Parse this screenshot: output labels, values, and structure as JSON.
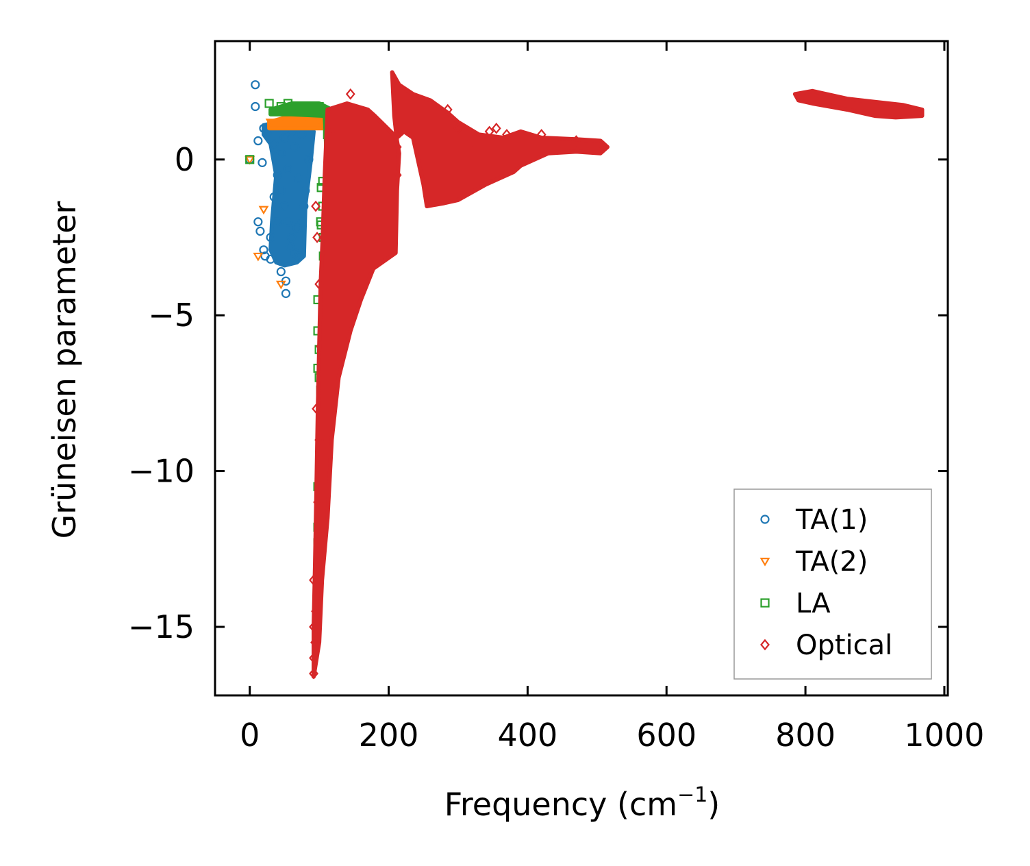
{
  "chart_data": {
    "type": "scatter",
    "title": "",
    "xlabel": "Frequency (cm",
    "xlabel_sup": "−1",
    "xlabel_close": ")",
    "ylabel": "Grüneisen parameter",
    "xlim": [
      -50,
      1005
    ],
    "ylim": [
      -17.2,
      3.8
    ],
    "xticks": [
      0,
      200,
      400,
      600,
      800,
      1000
    ],
    "xtick_labels": [
      "0",
      "200",
      "400",
      "600",
      "800",
      "1000"
    ],
    "yticks": [
      0,
      -5,
      -10,
      -15
    ],
    "ytick_labels": [
      "0",
      "−5",
      "−10",
      "−15"
    ],
    "grid": false,
    "legend_position": "bottom-right",
    "series": [
      {
        "name": "TA(1)",
        "marker": "circle",
        "color": "#1f77b4",
        "points": [
          [
            8,
            2.4
          ],
          [
            8,
            1.7
          ],
          [
            12,
            0.6
          ],
          [
            0,
            0
          ],
          [
            18,
            -0.1
          ],
          [
            12,
            -2
          ],
          [
            15,
            -2.3
          ],
          [
            20,
            -2.9
          ],
          [
            22,
            -3.1
          ],
          [
            30,
            -3.2
          ],
          [
            45,
            -3.6
          ],
          [
            52,
            -3.9
          ],
          [
            52,
            -4.3
          ],
          [
            20,
            1.0
          ],
          [
            25,
            0.9
          ],
          [
            35,
            0.5
          ],
          [
            40,
            -0.5
          ],
          [
            45,
            -1
          ],
          [
            50,
            -1.5
          ],
          [
            55,
            -2
          ],
          [
            60,
            -2.5
          ],
          [
            65,
            -3
          ],
          [
            70,
            -3.1
          ],
          [
            75,
            -2
          ],
          [
            80,
            -1
          ],
          [
            85,
            0
          ],
          [
            75,
            0.8
          ],
          [
            60,
            0.9
          ],
          [
            50,
            0.7
          ],
          [
            40,
            -2
          ],
          [
            30,
            -2.5
          ],
          [
            35,
            -1.2
          ],
          [
            45,
            0.2
          ],
          [
            55,
            -0.3
          ],
          [
            65,
            0.4
          ],
          [
            70,
            -0.6
          ],
          [
            78,
            -1.5
          ],
          [
            68,
            -2.2
          ],
          [
            58,
            -2.8
          ]
        ],
        "regions": [
          [
            [
              20,
              1.1
            ],
            [
              40,
              1.2
            ],
            [
              60,
              1.1
            ],
            [
              85,
              1.2
            ],
            [
              92,
              0.9
            ],
            [
              88,
              0
            ],
            [
              80,
              -1.5
            ],
            [
              78,
              -3.1
            ],
            [
              68,
              -3.3
            ],
            [
              50,
              -3.4
            ],
            [
              38,
              -3.3
            ],
            [
              30,
              -2.9
            ],
            [
              32,
              -2
            ],
            [
              38,
              -0.5
            ],
            [
              30,
              0.5
            ],
            [
              20,
              0.8
            ]
          ]
        ]
      },
      {
        "name": "TA(2)",
        "marker": "triangle-down",
        "color": "#ff7f0e",
        "points": [
          [
            0,
            0
          ],
          [
            20,
            -1.6
          ],
          [
            12,
            -3.1
          ],
          [
            45,
            -4.0
          ],
          [
            30,
            1.2
          ],
          [
            50,
            1.4
          ],
          [
            80,
            1.4
          ],
          [
            100,
            1.3
          ]
        ],
        "regions": [
          [
            [
              28,
              1.2
            ],
            [
              60,
              1.4
            ],
            [
              105,
              1.4
            ],
            [
              110,
              1.0
            ],
            [
              90,
              1.0
            ],
            [
              50,
              1.0
            ],
            [
              28,
              1.0
            ]
          ]
        ]
      },
      {
        "name": "LA",
        "marker": "square",
        "color": "#2ca02c",
        "points": [
          [
            0,
            0
          ],
          [
            28,
            1.8
          ],
          [
            45,
            1.7
          ],
          [
            55,
            1.8
          ],
          [
            70,
            1.7
          ],
          [
            85,
            1.7
          ],
          [
            100,
            1.7
          ],
          [
            118,
            1.5
          ],
          [
            118,
            1.1
          ],
          [
            112,
            0.8
          ],
          [
            105,
            -0.7
          ],
          [
            103,
            -0.9
          ],
          [
            105,
            -1.5
          ],
          [
            102,
            -2.0
          ],
          [
            103,
            -2.1
          ],
          [
            106,
            -2.5
          ],
          [
            106,
            -3.1
          ],
          [
            98,
            -4.5
          ],
          [
            98,
            -5.5
          ],
          [
            100,
            -6.1
          ],
          [
            98,
            -6.7
          ],
          [
            100,
            -7.0
          ],
          [
            102,
            -7.4
          ],
          [
            102,
            -8.8
          ],
          [
            98,
            -10.5
          ],
          [
            98,
            -11.8
          ],
          [
            98,
            -12.3
          ],
          [
            100,
            -12.4
          ],
          [
            98,
            -13.0
          ],
          [
            98,
            -13.3
          ],
          [
            100,
            -13.3
          ]
        ],
        "regions": [
          [
            [
              30,
              1.6
            ],
            [
              60,
              1.8
            ],
            [
              100,
              1.8
            ],
            [
              118,
              1.6
            ],
            [
              118,
              0.8
            ],
            [
              110,
              0.4
            ],
            [
              108,
              1.4
            ],
            [
              60,
              1.45
            ],
            [
              30,
              1.45
            ]
          ]
        ]
      },
      {
        "name": "Optical",
        "marker": "diamond",
        "color": "#d62728",
        "points": [
          [
            92,
            -16.5
          ],
          [
            92,
            -16
          ],
          [
            94,
            -15.5
          ],
          [
            92,
            -15
          ],
          [
            95,
            -14.5
          ],
          [
            92,
            -13.5
          ],
          [
            100,
            -12
          ],
          [
            98,
            -11
          ],
          [
            100,
            -9
          ],
          [
            96,
            -8
          ],
          [
            102,
            -6
          ],
          [
            100,
            -4
          ],
          [
            97,
            -2.5
          ],
          [
            95,
            -1.5
          ],
          [
            145,
            2.1
          ],
          [
            285,
            1.6
          ],
          [
            300,
            1.0
          ],
          [
            320,
            0.6
          ],
          [
            345,
            0.9
          ],
          [
            355,
            1.0
          ],
          [
            370,
            0.8
          ],
          [
            420,
            0.8
          ],
          [
            470,
            0.6
          ],
          [
            510,
            0.4
          ],
          [
            212,
            0.4
          ],
          [
            212,
            -0.5
          ],
          [
            120,
            1.0
          ]
        ],
        "regions": [
          [
            [
              92,
              -16.6
            ],
            [
              100,
              -15.5
            ],
            [
              104,
              -13.5
            ],
            [
              112,
              -11.5
            ],
            [
              118,
              -9
            ],
            [
              128,
              -7
            ],
            [
              145,
              -5.5
            ],
            [
              160,
              -4.5
            ],
            [
              178,
              -3.5
            ],
            [
              210,
              -3
            ],
            [
              212,
              -1
            ],
            [
              215,
              0.2
            ],
            [
              212,
              0.6
            ],
            [
              208,
              1.4
            ],
            [
              205,
              2.8
            ],
            [
              215,
              2.4
            ],
            [
              235,
              2.1
            ],
            [
              260,
              1.9
            ],
            [
              285,
              1.5
            ],
            [
              300,
              1.2
            ],
            [
              330,
              0.8
            ],
            [
              365,
              0.7
            ],
            [
              390,
              0.9
            ],
            [
              420,
              0.7
            ],
            [
              470,
              0.65
            ],
            [
              505,
              0.6
            ],
            [
              515,
              0.4
            ],
            [
              505,
              0.2
            ],
            [
              470,
              0.25
            ],
            [
              430,
              0.2
            ],
            [
              390,
              -0.2
            ],
            [
              380,
              -0.4
            ],
            [
              340,
              -0.8
            ],
            [
              300,
              -1.3
            ],
            [
              280,
              -1.4
            ],
            [
              255,
              -1.5
            ],
            [
              250,
              -0.8
            ],
            [
              235,
              0.7
            ],
            [
              222,
              0.9
            ],
            [
              212,
              0.7
            ],
            [
              180,
              1.4
            ],
            [
              170,
              1.6
            ],
            [
              140,
              1.8
            ],
            [
              112,
              1.6
            ],
            [
              108,
              -0.5
            ],
            [
              105,
              -2.5
            ],
            [
              102,
              -4
            ],
            [
              100,
              -6
            ],
            [
              98,
              -8
            ],
            [
              96,
              -10.5
            ],
            [
              94,
              -13
            ],
            [
              92,
              -15
            ]
          ],
          [
            [
              785,
              2.1
            ],
            [
              810,
              2.2
            ],
            [
              860,
              1.95
            ],
            [
              900,
              1.85
            ],
            [
              940,
              1.75
            ],
            [
              968,
              1.6
            ],
            [
              968,
              1.4
            ],
            [
              930,
              1.35
            ],
            [
              900,
              1.4
            ],
            [
              860,
              1.6
            ],
            [
              810,
              1.8
            ],
            [
              790,
              1.9
            ]
          ]
        ]
      }
    ]
  }
}
